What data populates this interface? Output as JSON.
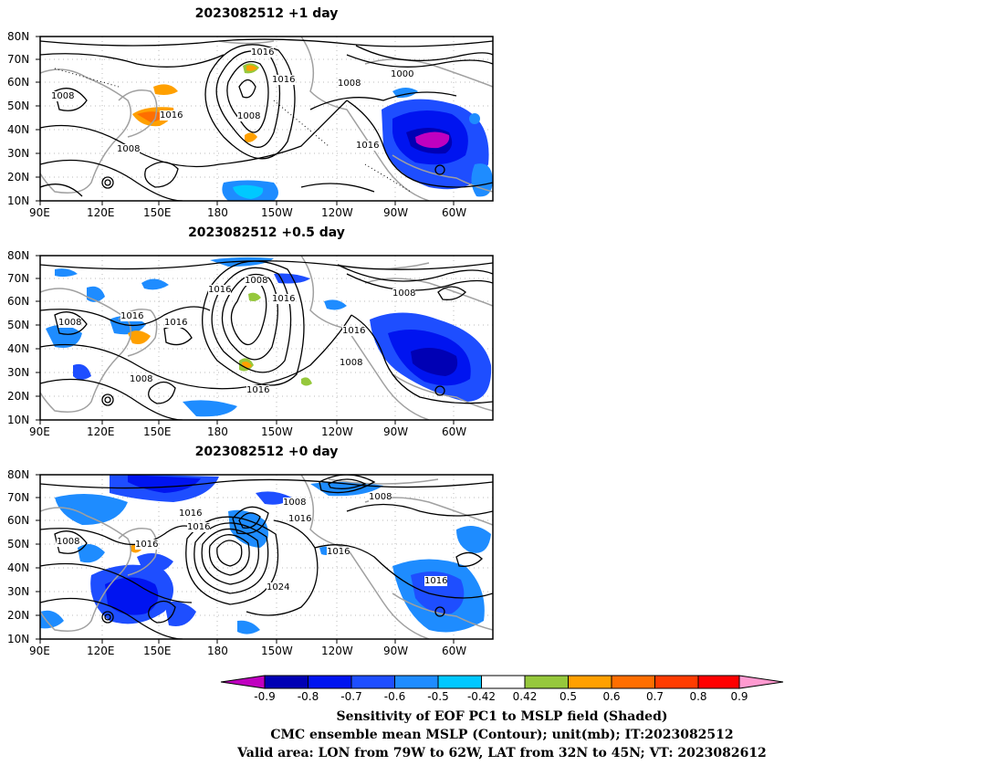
{
  "panels": [
    {
      "title": "2023082512  +1 day",
      "contour_labels": [
        "1016",
        "1016",
        "1000",
        "1008",
        "1008",
        "1016",
        "1008",
        "1016",
        "1008"
      ]
    },
    {
      "title": "2023082512  +0.5 day",
      "contour_labels": [
        "1008",
        "1016",
        "1016",
        "1008",
        "1008",
        "1016",
        "1016",
        "1016",
        "1008",
        "1008",
        "1016"
      ]
    },
    {
      "title": "2023082512  +0 day",
      "contour_labels": [
        "1016",
        "1016",
        "1008",
        "1016",
        "1008",
        "1016",
        "1008",
        "1016",
        "1024",
        "1016"
      ]
    }
  ],
  "axes": {
    "lat_labels": [
      "80N",
      "70N",
      "60N",
      "50N",
      "40N",
      "30N",
      "20N",
      "10N"
    ],
    "lon_labels": [
      "90E",
      "120E",
      "150E",
      "180",
      "150W",
      "120W",
      "90W",
      "60W"
    ]
  },
  "colorbar": {
    "labels": [
      "-0.9",
      "-0.8",
      "-0.7",
      "-0.6",
      "-0.5",
      "-0.42",
      "0.42",
      "0.5",
      "0.6",
      "0.7",
      "0.8",
      "0.9"
    ],
    "colors": [
      "#c000c0",
      "#0000b4",
      "#0014f0",
      "#1e4eff",
      "#1e8cff",
      "#00c8ff",
      "#ffffff",
      "#96c83c",
      "#ffa000",
      "#ff6e00",
      "#ff3c00",
      "#ff0000",
      "#ff9ad0"
    ]
  },
  "caption": {
    "line1": "Sensitivity of EOF PC1 to MSLP field (Shaded)",
    "line2": "CMC ensemble mean MSLP (Contour); unit(mb); IT:2023082512",
    "line3": "Valid area: LON from 79W to 62W, LAT from 32N to 45N; VT: 2023082612"
  }
}
